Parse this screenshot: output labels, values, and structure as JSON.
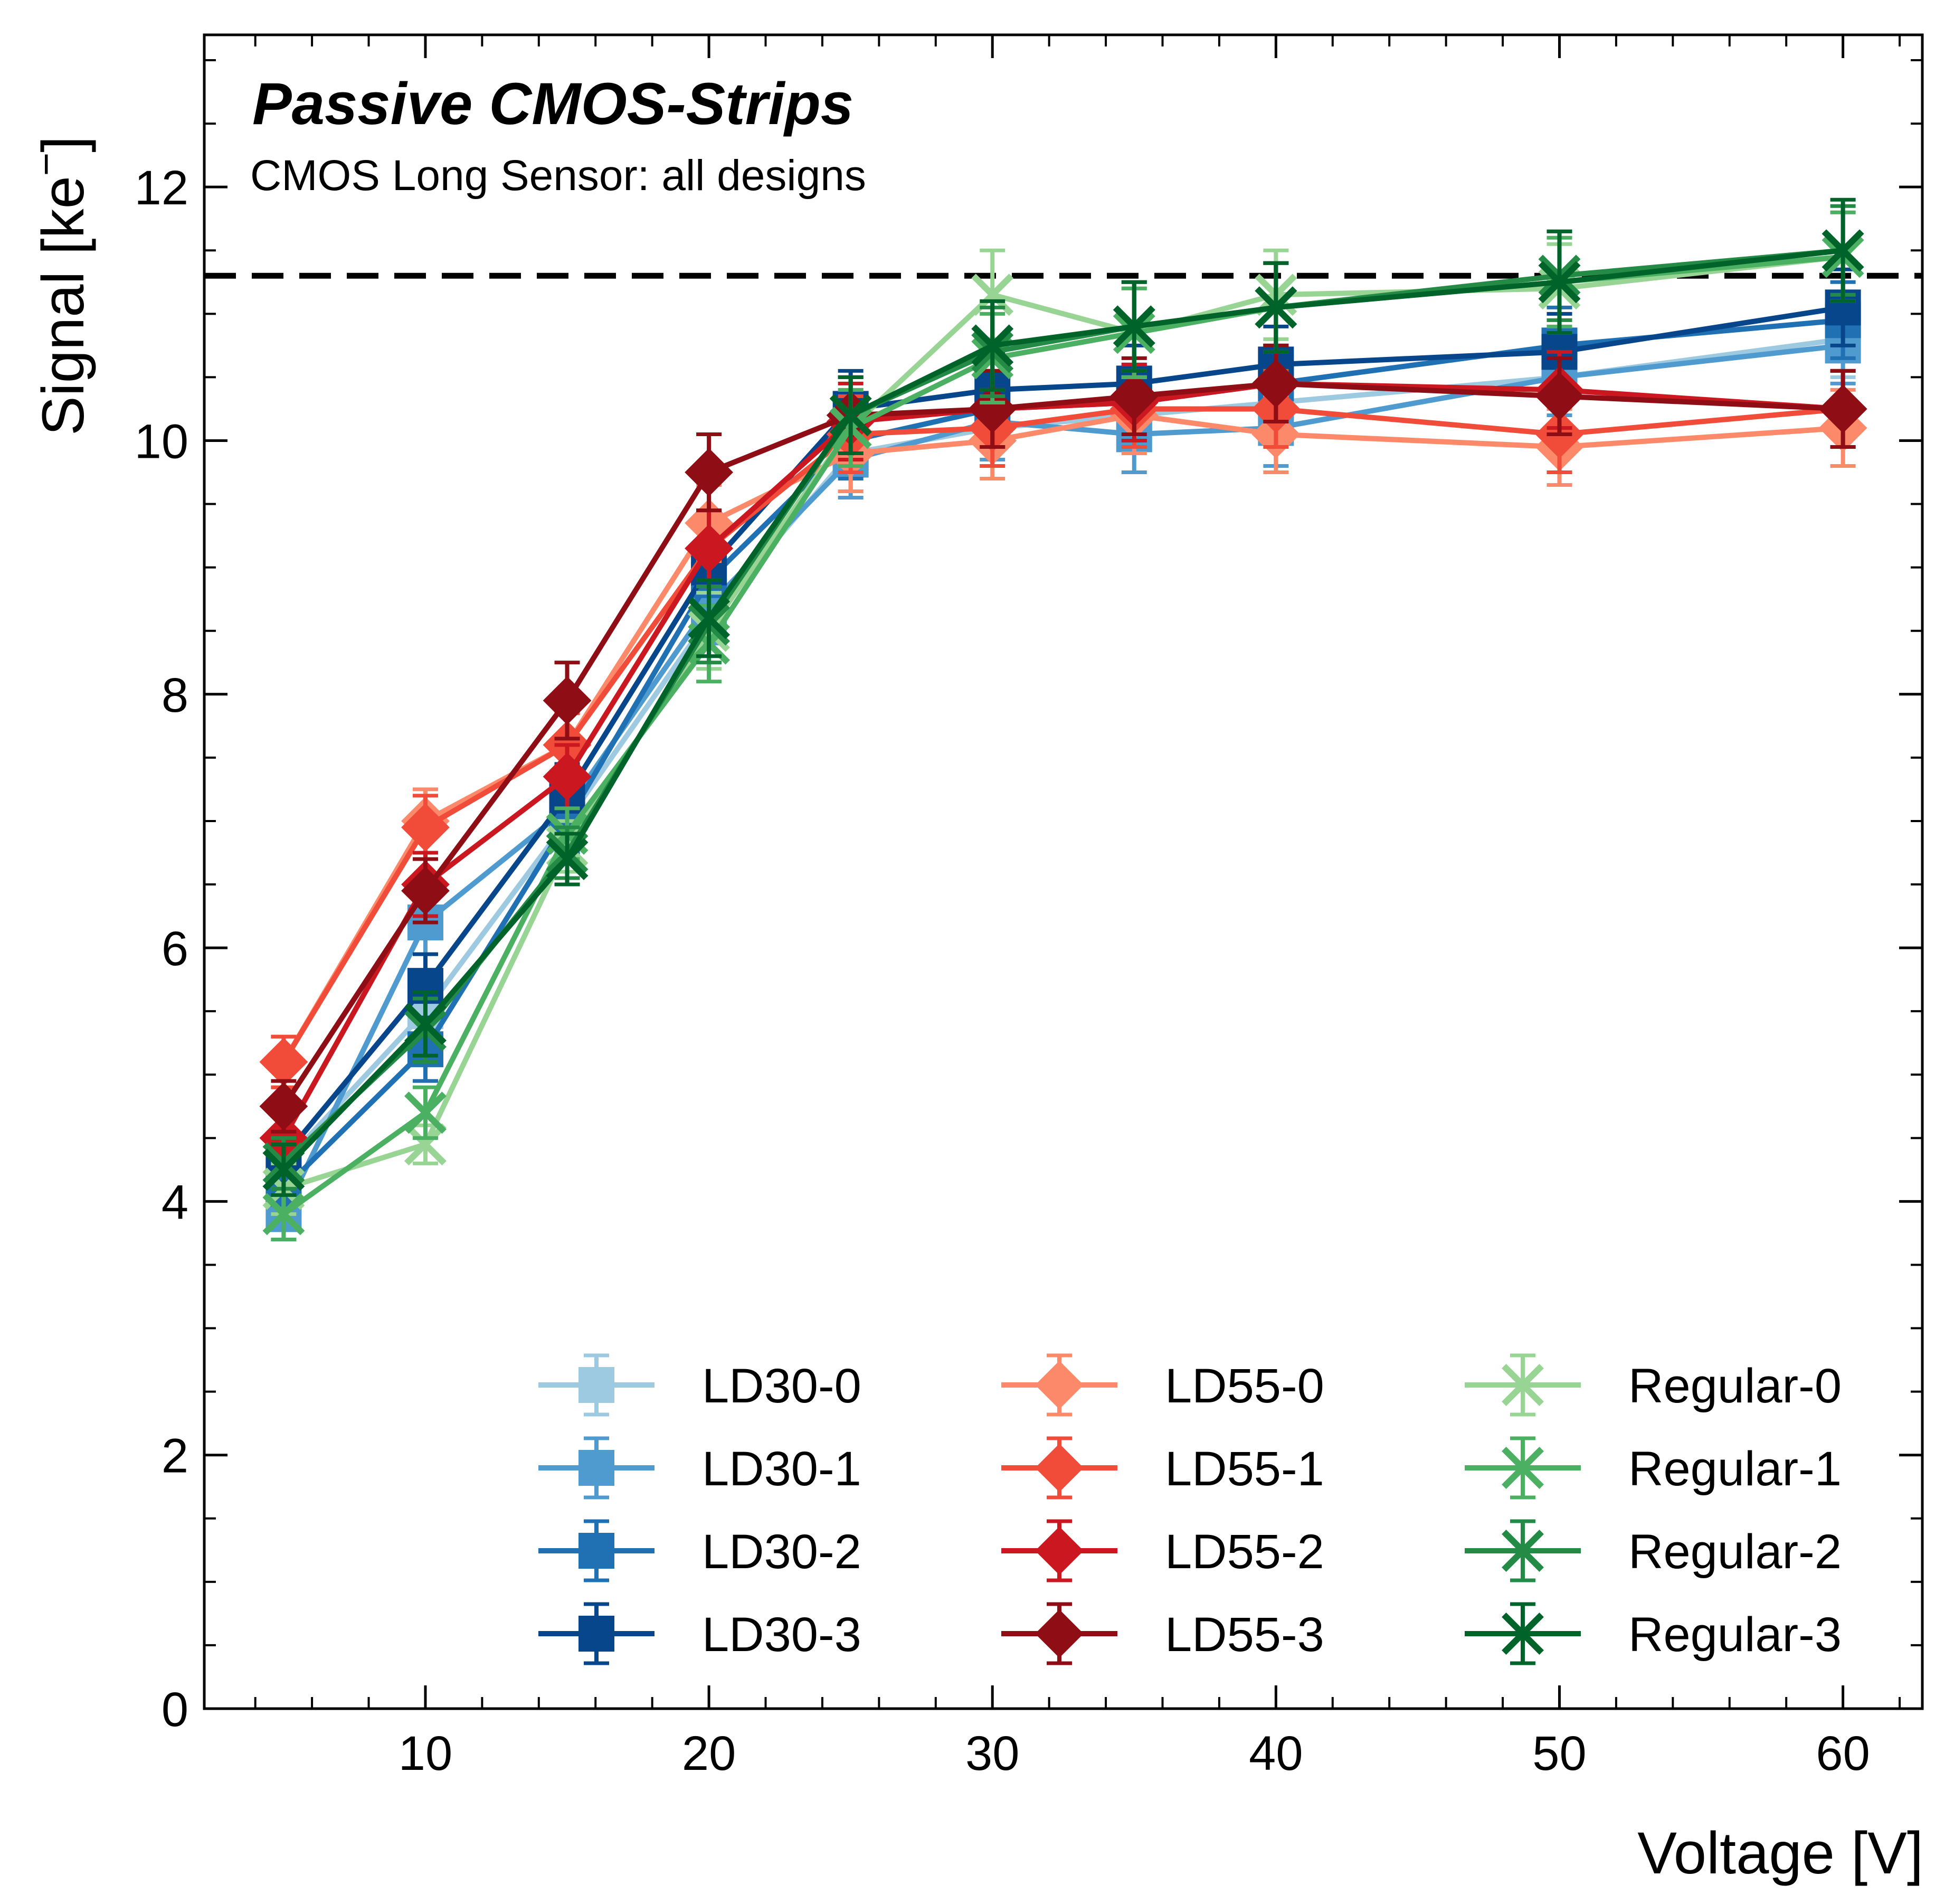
{
  "chart_data": {
    "type": "line",
    "title": "Passive CMOS-Strips",
    "subtitle": "CMOS Long Sensor: all designs",
    "xlabel": "Voltage [V]",
    "ylabel": "Signal [ke",
    "ylabel_sup": "−",
    "ylabel_close": "]",
    "xlim": [
      2.2,
      62.8
    ],
    "ylim": [
      0,
      13.2
    ],
    "xticks": [
      10,
      20,
      30,
      40,
      50,
      60
    ],
    "xtick_labels": [
      "10",
      "20",
      "30",
      "40",
      "50",
      "60"
    ],
    "yticks": [
      0,
      2,
      4,
      6,
      8,
      10,
      12
    ],
    "ytick_labels": [
      "0",
      "2",
      "4",
      "6",
      "8",
      "10",
      "12"
    ],
    "reference_line": {
      "y": 11.3,
      "style": "dashed",
      "color": "#000000"
    },
    "legend_position": "lower-right",
    "legend_columns": 3,
    "x": [
      5,
      10,
      15,
      20,
      25,
      30,
      35,
      40,
      50,
      60
    ],
    "series": [
      {
        "name": "LD30-0",
        "color": "#9ecae1",
        "marker": "square",
        "values": [
          4.3,
          5.5,
          7.0,
          8.6,
          9.9,
          10.1,
          10.2,
          10.3,
          10.5,
          10.8
        ],
        "errors": [
          0.2,
          0.25,
          0.25,
          0.3,
          0.3,
          0.3,
          0.3,
          0.3,
          0.3,
          0.3
        ]
      },
      {
        "name": "LD30-1",
        "color": "#4f9bd0",
        "marker": "square",
        "values": [
          3.9,
          6.2,
          7.1,
          8.7,
          9.85,
          10.15,
          10.05,
          10.1,
          10.5,
          10.75
        ],
        "errors": [
          0.2,
          0.25,
          0.25,
          0.3,
          0.3,
          0.3,
          0.3,
          0.3,
          0.3,
          0.3
        ]
      },
      {
        "name": "LD30-2",
        "color": "#2070b4",
        "marker": "square",
        "values": [
          4.1,
          5.2,
          7.0,
          8.9,
          10.0,
          10.25,
          10.3,
          10.45,
          10.75,
          10.95
        ],
        "errors": [
          0.2,
          0.25,
          0.25,
          0.3,
          0.3,
          0.3,
          0.3,
          0.3,
          0.3,
          0.3
        ]
      },
      {
        "name": "LD30-3",
        "color": "#08468c",
        "marker": "square",
        "values": [
          4.35,
          5.7,
          7.2,
          9.0,
          10.25,
          10.4,
          10.45,
          10.6,
          10.7,
          11.05
        ],
        "errors": [
          0.2,
          0.25,
          0.25,
          0.3,
          0.3,
          0.3,
          0.3,
          0.3,
          0.3,
          0.3
        ]
      },
      {
        "name": "LD55-0",
        "color": "#fc8a6a",
        "marker": "diamond",
        "values": [
          5.1,
          7.0,
          7.6,
          9.35,
          9.9,
          10.0,
          10.2,
          10.05,
          9.95,
          10.1
        ],
        "errors": [
          0.2,
          0.25,
          0.25,
          0.3,
          0.3,
          0.3,
          0.3,
          0.3,
          0.3,
          0.3
        ]
      },
      {
        "name": "LD55-1",
        "color": "#f14c3a",
        "marker": "diamond",
        "values": [
          5.1,
          6.95,
          7.6,
          9.15,
          10.05,
          10.1,
          10.25,
          10.25,
          10.05,
          10.25
        ],
        "errors": [
          0.2,
          0.25,
          0.25,
          0.3,
          0.3,
          0.3,
          0.3,
          0.3,
          0.3,
          0.3
        ]
      },
      {
        "name": "LD55-2",
        "color": "#cb1820",
        "marker": "diamond",
        "values": [
          4.5,
          6.5,
          7.35,
          9.15,
          10.15,
          10.25,
          10.3,
          10.45,
          10.4,
          10.25
        ],
        "errors": [
          0.2,
          0.25,
          0.25,
          0.3,
          0.3,
          0.3,
          0.3,
          0.3,
          0.3,
          0.3
        ]
      },
      {
        "name": "LD55-3",
        "color": "#8f0d14",
        "marker": "diamond",
        "values": [
          4.75,
          6.45,
          7.95,
          9.75,
          10.2,
          10.25,
          10.35,
          10.45,
          10.35,
          10.25
        ],
        "errors": [
          0.2,
          0.25,
          0.3,
          0.3,
          0.3,
          0.3,
          0.3,
          0.3,
          0.3,
          0.3
        ]
      },
      {
        "name": "Regular-0",
        "color": "#98d594",
        "marker": "x",
        "values": [
          4.1,
          4.45,
          6.8,
          8.5,
          10.1,
          11.15,
          10.85,
          11.15,
          11.2,
          11.45
        ],
        "errors": [
          0.2,
          0.15,
          0.2,
          0.3,
          0.3,
          0.35,
          0.35,
          0.35,
          0.35,
          0.35
        ]
      },
      {
        "name": "Regular-1",
        "color": "#4bb062",
        "marker": "x",
        "values": [
          3.9,
          4.7,
          6.9,
          8.4,
          10.1,
          10.65,
          10.85,
          11.05,
          11.25,
          11.45
        ],
        "errors": [
          0.2,
          0.2,
          0.2,
          0.3,
          0.3,
          0.35,
          0.35,
          0.35,
          0.35,
          0.35
        ]
      },
      {
        "name": "Regular-2",
        "color": "#238b45",
        "marker": "x",
        "values": [
          4.3,
          5.35,
          6.75,
          8.55,
          10.2,
          10.7,
          10.9,
          11.05,
          11.3,
          11.5
        ],
        "errors": [
          0.2,
          0.25,
          0.2,
          0.3,
          0.3,
          0.35,
          0.35,
          0.35,
          0.35,
          0.35
        ]
      },
      {
        "name": "Regular-3",
        "color": "#00632a",
        "marker": "x",
        "values": [
          4.25,
          5.4,
          6.7,
          8.6,
          10.2,
          10.75,
          10.9,
          11.05,
          11.25,
          11.5
        ],
        "errors": [
          0.2,
          0.25,
          0.2,
          0.3,
          0.3,
          0.35,
          0.35,
          0.35,
          0.4,
          0.4
        ]
      }
    ]
  }
}
